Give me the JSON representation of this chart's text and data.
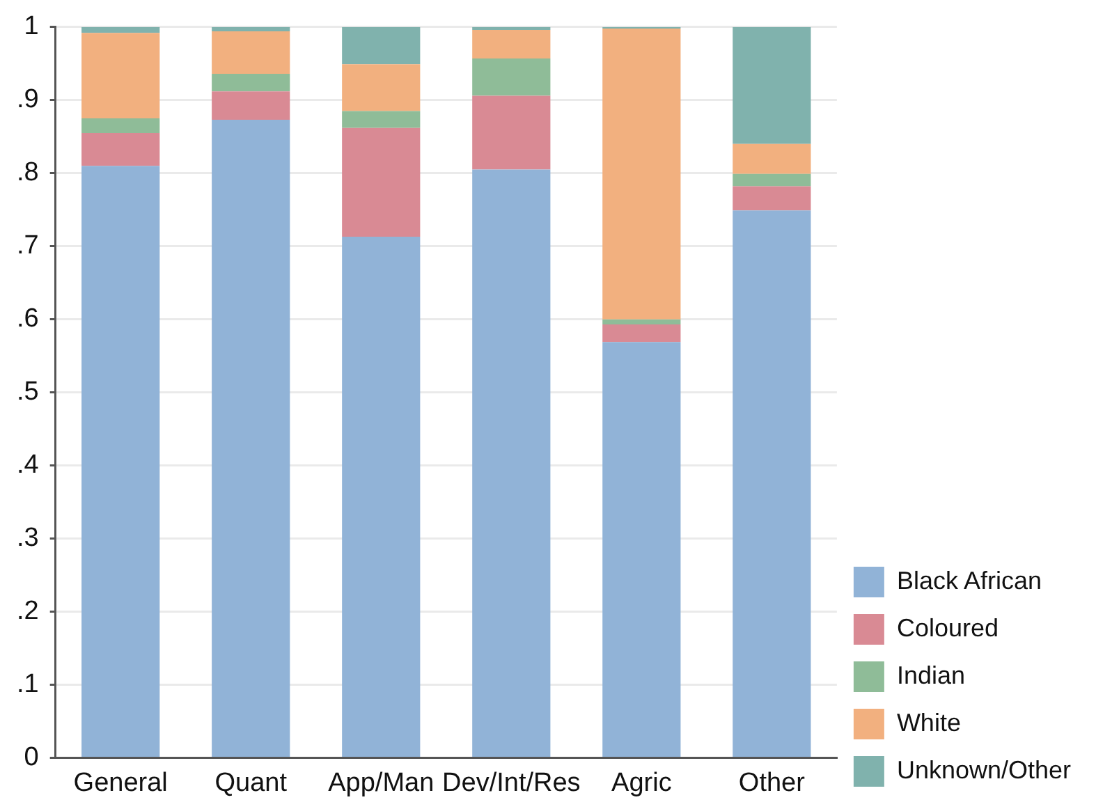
{
  "chart_data": {
    "type": "bar",
    "stacked": true,
    "categories": [
      "General",
      "Quant",
      "App/Man",
      "Dev/Int/Res",
      "Agric",
      "Other"
    ],
    "series": [
      {
        "name": "Black African",
        "color": "#91b3d7",
        "values": [
          0.81,
          0.873,
          0.713,
          0.805,
          0.569,
          0.749
        ]
      },
      {
        "name": "Coloured",
        "color": "#d98a94",
        "values": [
          0.045,
          0.039,
          0.149,
          0.101,
          0.024,
          0.033
        ]
      },
      {
        "name": "Indian",
        "color": "#8fbc98",
        "values": [
          0.02,
          0.024,
          0.023,
          0.051,
          0.007,
          0.017
        ]
      },
      {
        "name": "White",
        "color": "#f2b07f",
        "values": [
          0.117,
          0.058,
          0.064,
          0.039,
          0.398,
          0.041
        ]
      },
      {
        "name": "Unknown/Other",
        "color": "#80b2ad",
        "values": [
          0.008,
          0.006,
          0.051,
          0.004,
          0.002,
          0.16
        ]
      }
    ],
    "ylim": [
      0,
      1
    ],
    "yticks": [
      0,
      {
        "value": 0.1,
        "label": ".1"
      },
      {
        "value": 0.2,
        "label": ".2"
      },
      {
        "value": 0.3,
        "label": ".3"
      },
      {
        "value": 0.4,
        "label": ".4"
      },
      {
        "value": 0.5,
        "label": ".5"
      },
      {
        "value": 0.6,
        "label": ".6"
      },
      {
        "value": 0.7,
        "label": ".7"
      },
      {
        "value": 0.8,
        "label": ".8"
      },
      {
        "value": 0.9,
        "label": ".9"
      },
      1
    ],
    "grid": "y",
    "legend": "right"
  }
}
